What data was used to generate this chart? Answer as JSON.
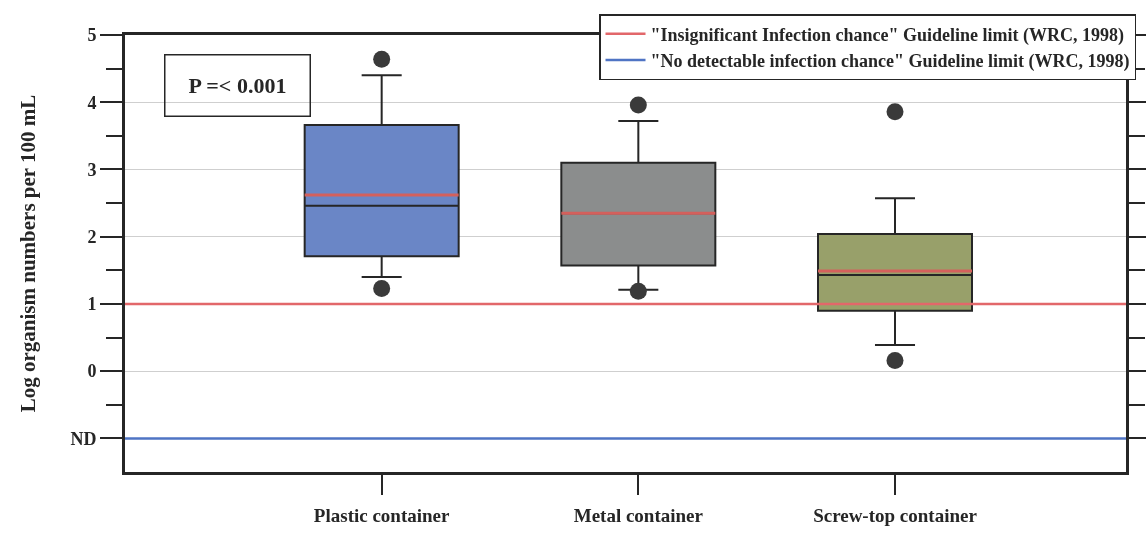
{
  "chart_data": {
    "type": "box",
    "categories": [
      "Plastic container",
      "Metal container",
      "Screw-top container"
    ],
    "colors": [
      "#6a86c6",
      "#8b8d8d",
      "#98a06a"
    ],
    "boxes": [
      {
        "low": 1.4,
        "q1": 1.71,
        "median": 2.46,
        "q3": 3.66,
        "high": 4.4,
        "mean": 2.62,
        "outliers": [
          4.64,
          1.23
        ]
      },
      {
        "low": 1.21,
        "q1": 1.57,
        "median": 2.35,
        "q3": 3.1,
        "high": 3.72,
        "mean": 2.35,
        "outliers": [
          3.96,
          1.19
        ]
      },
      {
        "low": 0.39,
        "q1": 0.9,
        "median": 1.43,
        "q3": 2.04,
        "high": 2.57,
        "mean": 1.49,
        "outliers": [
          3.86,
          0.16
        ]
      }
    ],
    "ylabel": "Log organism numbers per 100 mL",
    "ylim": [
      -1.5,
      5
    ],
    "yticks": [
      {
        "value": -1,
        "label": "ND"
      },
      {
        "value": -0.5,
        "label": null
      },
      0,
      {
        "value": 0.5,
        "label": null
      },
      1,
      {
        "value": 1.5,
        "label": null
      },
      2,
      {
        "value": 2.5,
        "label": null
      },
      3,
      {
        "value": 3.5,
        "label": null
      },
      4,
      {
        "value": 4.5,
        "label": null
      },
      5
    ],
    "grid": "y",
    "legend": "top right",
    "marker": "circle",
    "ref_lines": [
      {
        "axis": "y",
        "value": 1,
        "label": "\"Insignificant Infection chance\" Guideline limit (WRC, 1998)",
        "color": "#e2676a"
      },
      {
        "axis": "y",
        "value": -1,
        "label": "\"No detectable infection chance\" Guideline limit (WRC, 1998)",
        "color": "#4f74c4"
      }
    ],
    "annotations": [
      "P =< 0.001"
    ]
  }
}
